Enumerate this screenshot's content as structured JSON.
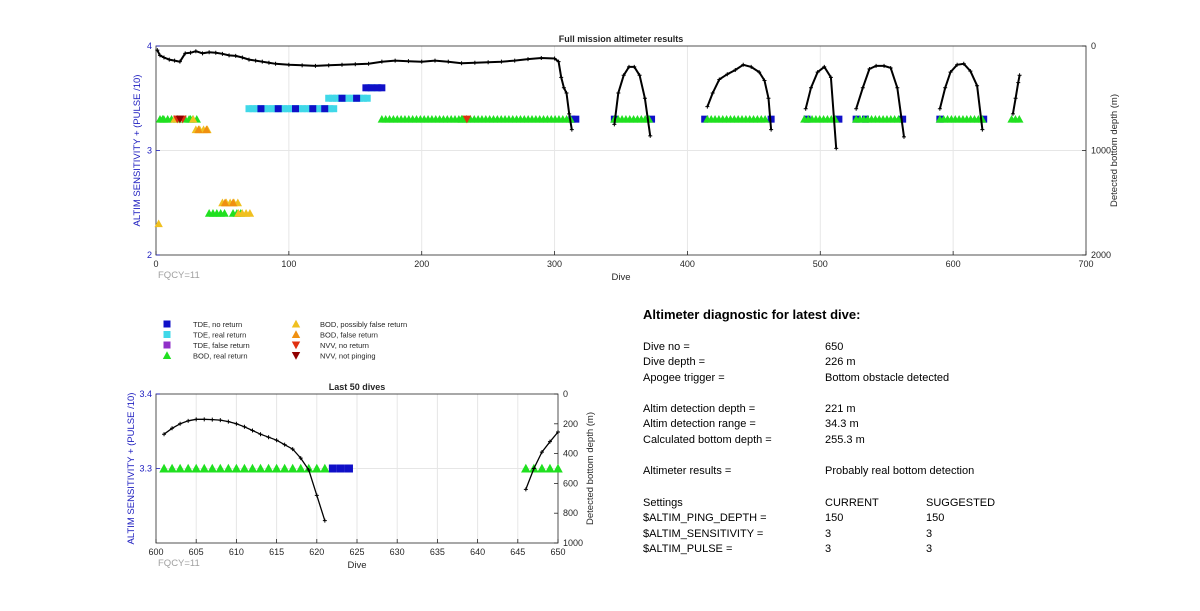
{
  "chart_data": [
    {
      "type": "scatter",
      "title": "Full mission altimeter results",
      "xlabel": "Dive",
      "ylabel": "ALTIM SENSITIVITY + (PULSE /10)",
      "y2label": "Detected bottom depth (m)",
      "xlim": [
        0,
        700
      ],
      "ylim": [
        2,
        4
      ],
      "y2lim": [
        0,
        2000
      ],
      "y2reversed": true,
      "xticks": [
        "0",
        "100",
        "200",
        "300",
        "400",
        "500",
        "600",
        "700"
      ],
      "yticks": [
        "2",
        "3",
        "4"
      ],
      "y2ticks": [
        "0",
        "1000",
        "2000"
      ],
      "annotation": "FQCY=11",
      "grid": true,
      "colors": {
        "tde_no": "#1010c8",
        "tde_real": "#40d8e8",
        "tde_false": "#9030c8",
        "bod_real": "#20e020",
        "bod_possible": "#f0c020",
        "bod_false": "#f09010",
        "nvv_no": "#e03010",
        "nvv_notping": "#900000",
        "depth": "#000000"
      },
      "series": [
        {
          "name": "TDE, real return",
          "marker": "square",
          "color_key": "tde_real",
          "runs": [
            [
              70,
              135,
              3.4
            ],
            [
              130,
              160,
              3.5
            ],
            [
              160,
              168,
              3.6
            ]
          ]
        },
        {
          "name": "TDE, no return",
          "marker": "square",
          "color_key": "tde_no",
          "x": [
            79,
            92,
            105,
            118,
            127,
            140,
            151,
            158,
            162,
            167,
            170,
            313,
            316,
            345,
            373,
            413,
            463,
            490,
            514,
            527,
            534,
            562,
            590,
            623
          ],
          "y": [
            3.4,
            3.4,
            3.4,
            3.4,
            3.4,
            3.5,
            3.5,
            3.6,
            3.6,
            3.6,
            3.6,
            3.3,
            3.3,
            3.3,
            3.3,
            3.3,
            3.3,
            3.3,
            3.3,
            3.3,
            3.3,
            3.3,
            3.3,
            3.3
          ]
        },
        {
          "name": "BOD, real return",
          "marker": "triangle-up",
          "color_key": "bod_real",
          "runs": [
            [
              3,
              12,
              3.3
            ],
            [
              22,
              32,
              3.3
            ],
            [
              170,
              312,
              3.3
            ],
            [
              345,
              372,
              3.3
            ],
            [
              415,
              461,
              3.3
            ],
            [
              488,
              512,
              3.3
            ],
            [
              527,
              560,
              3.3
            ],
            [
              590,
              622,
              3.3
            ],
            [
              644,
              651,
              3.3
            ],
            [
              40,
              54,
              2.4
            ],
            [
              58,
              66,
              2.4
            ]
          ],
          "x": [
            5,
            16,
            26,
            230
          ],
          "y": [
            3.3,
            3.3,
            3.3,
            3.3
          ]
        },
        {
          "name": "BOD, possibly false return",
          "marker": "triangle-up",
          "color_key": "bod_possible",
          "runs": [
            [
              30,
              40,
              3.2
            ],
            [
              50,
              62,
              2.5
            ],
            [
              62,
              72,
              2.4
            ]
          ],
          "x": [
            2,
            14,
            28
          ],
          "y": [
            2.3,
            3.3,
            3.3
          ]
        },
        {
          "name": "BOD, false return",
          "marker": "triangle-up",
          "color_key": "bod_false",
          "x": [
            32,
            38,
            52,
            58
          ],
          "y": [
            3.2,
            3.2,
            2.5,
            2.5
          ]
        },
        {
          "name": "NVV, no return",
          "marker": "triangle-down",
          "color_key": "nvv_no",
          "x": [
            16,
            20,
            234
          ],
          "y": [
            3.3,
            3.3,
            3.3
          ]
        },
        {
          "name": "NVV, not pinging",
          "marker": "triangle-down",
          "color_key": "nvv_notping",
          "x": [
            18
          ],
          "y": [
            3.3
          ]
        },
        {
          "name": "TDE, false return",
          "marker": "square",
          "color_key": "tde_false",
          "x": [],
          "y": []
        },
        {
          "axis": "y2",
          "marker": "line-plus",
          "color_key": "depth",
          "segments": [
            {
              "x": [
                1,
                3,
                6,
                10,
                14,
                18,
                22,
                26,
                30,
                35,
                40,
                45,
                50,
                55,
                60,
                65,
                70,
                75,
                80,
                85,
                90,
                100,
                110,
                120,
                130,
                140,
                150,
                160,
                170,
                180,
                190,
                200,
                210,
                220,
                230,
                240,
                250,
                260,
                270,
                280,
                290,
                300,
                303,
                305,
                307,
                309,
                311,
                313
              ],
              "y": [
                40,
                90,
                110,
                130,
                140,
                150,
                70,
                65,
                50,
                70,
                60,
                65,
                75,
                90,
                95,
                110,
                130,
                140,
                150,
                160,
                170,
                180,
                185,
                190,
                185,
                180,
                175,
                170,
                150,
                140,
                145,
                150,
                140,
                150,
                165,
                160,
                155,
                150,
                140,
                125,
                115,
                120,
                150,
                300,
                400,
                450,
                650,
                800
              ]
            },
            {
              "x": [
                345,
                348,
                352,
                356,
                360,
                364,
                368,
                372
              ],
              "y": [
                750,
                450,
                280,
                200,
                200,
                280,
                500,
                860
              ]
            },
            {
              "x": [
                415,
                419,
                424,
                430,
                436,
                442,
                448,
                454,
                458,
                461,
                463
              ],
              "y": [
                580,
                450,
                320,
                270,
                230,
                180,
                200,
                250,
                330,
                500,
                800
              ]
            },
            {
              "x": [
                489,
                493,
                498,
                503,
                508,
                512
              ],
              "y": [
                600,
                400,
                250,
                200,
                300,
                980
              ]
            },
            {
              "x": [
                527,
                532,
                537,
                542,
                548,
                553,
                558,
                563
              ],
              "y": [
                600,
                400,
                220,
                190,
                190,
                210,
                400,
                870
              ]
            },
            {
              "x": [
                590,
                594,
                598,
                603,
                608,
                613,
                618,
                622
              ],
              "y": [
                600,
                400,
                250,
                180,
                170,
                240,
                380,
                800
              ]
            },
            {
              "x": [
                645,
                647,
                649,
                650
              ],
              "y": [
                650,
                500,
                350,
                280
              ]
            }
          ]
        }
      ]
    },
    {
      "type": "scatter",
      "title": "Last 50 dives",
      "xlabel": "Dive",
      "ylabel": "ALTIM SENSITIVITY + (PULSE /10)",
      "y2label": "Detected bottom depth (m)",
      "xlim": [
        600,
        650
      ],
      "ylim": [
        3.2,
        3.4
      ],
      "y2lim": [
        0,
        1000
      ],
      "y2reversed": true,
      "xticks": [
        "600",
        "605",
        "610",
        "615",
        "620",
        "625",
        "630",
        "635",
        "640",
        "645",
        "650"
      ],
      "yticks": [
        "3.3",
        "3.4"
      ],
      "y2ticks": [
        "0",
        "200",
        "400",
        "600",
        "800",
        "1000"
      ],
      "annotation": "FQCY=11",
      "grid": true,
      "series": [
        {
          "name": "BOD, real return",
          "marker": "triangle-up",
          "color_key": "bod_real",
          "x": [
            601,
            602,
            603,
            604,
            605,
            606,
            607,
            608,
            609,
            610,
            611,
            612,
            613,
            614,
            615,
            616,
            617,
            618,
            619,
            620,
            621,
            646,
            647,
            648,
            649,
            650
          ],
          "y": [
            3.3,
            3.3,
            3.3,
            3.3,
            3.3,
            3.3,
            3.3,
            3.3,
            3.3,
            3.3,
            3.3,
            3.3,
            3.3,
            3.3,
            3.3,
            3.3,
            3.3,
            3.3,
            3.3,
            3.3,
            3.3,
            3.3,
            3.3,
            3.3,
            3.3,
            3.3
          ]
        },
        {
          "name": "TDE, no return",
          "marker": "square",
          "color_key": "tde_no",
          "x": [
            622,
            623,
            624
          ],
          "y": [
            3.3,
            3.3,
            3.3
          ]
        },
        {
          "axis": "y2",
          "marker": "line-plus",
          "color_key": "depth",
          "segments": [
            {
              "x": [
                601,
                602,
                603,
                604,
                605,
                606,
                607,
                608,
                609,
                610,
                611,
                612,
                613,
                614,
                615,
                616,
                617,
                618,
                619,
                620,
                621
              ],
              "y": [
                270,
                230,
                200,
                180,
                170,
                170,
                172,
                175,
                185,
                200,
                220,
                245,
                270,
                290,
                310,
                340,
                370,
                430,
                510,
                680,
                850
              ]
            },
            {
              "x": [
                646,
                647,
                648,
                649,
                650
              ],
              "y": [
                640,
                500,
                390,
                320,
                255
              ]
            }
          ]
        }
      ]
    }
  ],
  "legend": {
    "col1": [
      {
        "label": "TDE, no return",
        "marker": "square",
        "color_key": "tde_no"
      },
      {
        "label": "TDE, real return",
        "marker": "square",
        "color_key": "tde_real"
      },
      {
        "label": "TDE, false return",
        "marker": "square",
        "color_key": "tde_false"
      },
      {
        "label": "BOD, real return",
        "marker": "triangle-up",
        "color_key": "bod_real"
      }
    ],
    "col2": [
      {
        "label": "BOD, possibly false return",
        "marker": "triangle-up",
        "color_key": "bod_possible"
      },
      {
        "label": "BOD, false return",
        "marker": "triangle-up",
        "color_key": "bod_false"
      },
      {
        "label": "NVV, no return",
        "marker": "triangle-down",
        "color_key": "nvv_no"
      },
      {
        "label": "NVV, not pinging",
        "marker": "triangle-down",
        "color_key": "nvv_notping"
      }
    ]
  },
  "diagnostic": {
    "title": "Altimeter diagnostic for latest dive:",
    "rows": [
      {
        "label": "Dive no =",
        "value": "650"
      },
      {
        "label": "Dive depth =",
        "value": "226 m"
      },
      {
        "label": "Apogee trigger =",
        "value": "Bottom obstacle detected"
      },
      {
        "label": "Altim detection depth =",
        "value": "221 m"
      },
      {
        "label": "Altim detection range =",
        "value": "34.3 m"
      },
      {
        "label": "Calculated bottom depth =",
        "value": "255.3 m"
      },
      {
        "label": "Altimeter results =",
        "value": "Probably real bottom detection"
      }
    ],
    "settings_header": {
      "label": "Settings",
      "current": "CURRENT",
      "suggested": "SUGGESTED"
    },
    "settings": [
      {
        "label": "$ALTIM_PING_DEPTH =",
        "current": "150",
        "suggested": "150"
      },
      {
        "label": "$ALTIM_SENSITIVITY =",
        "current": "3",
        "suggested": "3"
      },
      {
        "label": "$ALTIM_PULSE =",
        "current": "3",
        "suggested": "3"
      }
    ]
  }
}
